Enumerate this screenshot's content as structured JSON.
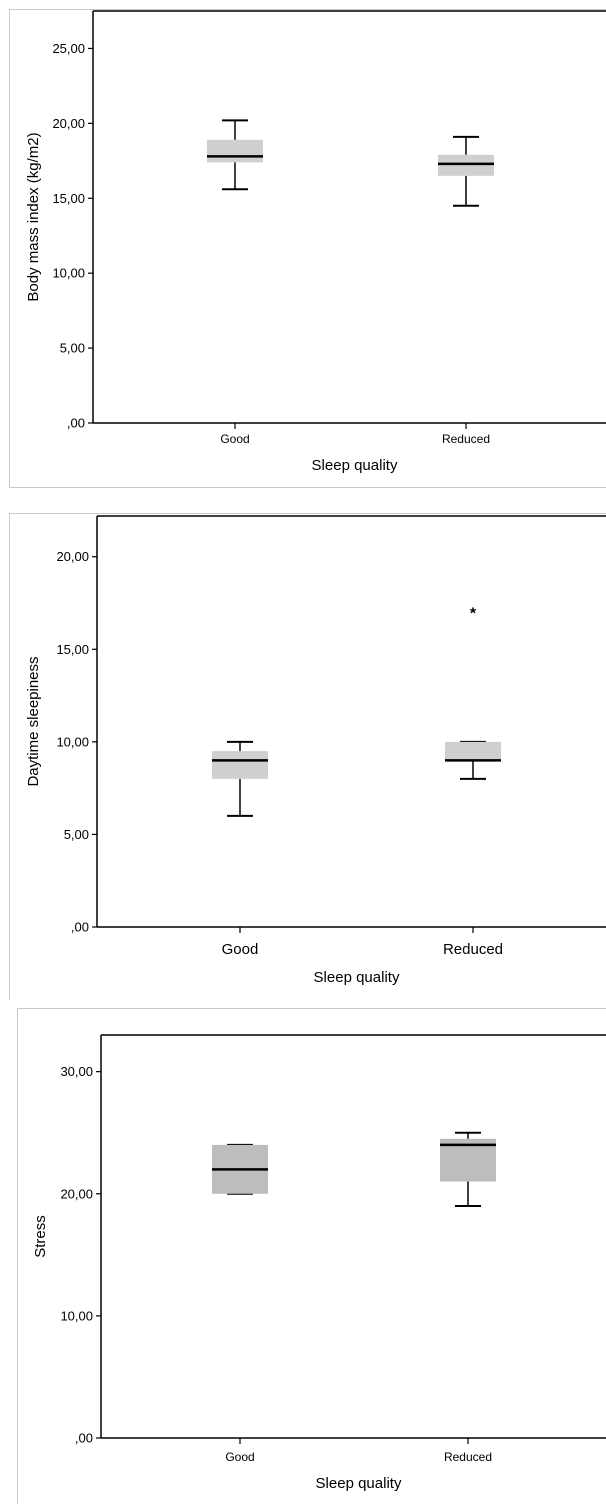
{
  "colors": {
    "box_fill": "#cfcfcf",
    "box_fill_dark": "#bdbdbd",
    "line": "#000000",
    "frame": "#c8c8c8"
  },
  "chart_data": [
    {
      "type": "boxplot",
      "title": "",
      "xlabel": "Sleep quality",
      "ylabel": "Body mass index (kg/m2)",
      "ylim": [
        0,
        27.5
      ],
      "yticks": [
        0,
        5,
        10,
        15,
        20,
        25
      ],
      "ytick_labels": [
        ",00",
        "5,00",
        "10,00",
        "15,00",
        "20,00",
        "25,00"
      ],
      "categories": [
        "Good",
        "Reduced"
      ],
      "boxes": [
        {
          "category": "Good",
          "min": 15.6,
          "q1": 17.4,
          "median": 17.8,
          "q3": 18.9,
          "max": 20.2
        },
        {
          "category": "Reduced",
          "min": 14.5,
          "q1": 16.5,
          "median": 17.3,
          "q3": 17.9,
          "max": 19.1
        }
      ],
      "outliers": [],
      "grid": false,
      "legend": "none"
    },
    {
      "type": "boxplot",
      "title": "",
      "xlabel": "Sleep quality",
      "ylabel": "Daytime sleepiness",
      "ylim": [
        0,
        22.2
      ],
      "yticks": [
        0,
        5,
        10,
        15,
        20
      ],
      "ytick_labels": [
        ",00",
        "5,00",
        "10,00",
        "15,00",
        "20,00"
      ],
      "categories": [
        "Good",
        "Reduced"
      ],
      "boxes": [
        {
          "category": "Good",
          "min": 6.0,
          "q1": 8.0,
          "median": 9.0,
          "q3": 9.5,
          "max": 10.0
        },
        {
          "category": "Reduced",
          "min": 8.0,
          "q1": 9.0,
          "median": 9.0,
          "q3": 10.0,
          "max": 10.0
        }
      ],
      "outliers": [
        {
          "category": "Reduced",
          "value": 17.0,
          "marker": "*"
        }
      ],
      "grid": false,
      "legend": "none"
    },
    {
      "type": "boxplot",
      "title": "",
      "xlabel": "Sleep quality",
      "ylabel": "Stress",
      "ylim": [
        0,
        33
      ],
      "yticks": [
        0,
        10,
        20,
        30
      ],
      "ytick_labels": [
        ",00",
        "10,00",
        "20,00",
        "30,00"
      ],
      "categories": [
        "Good",
        "Reduced"
      ],
      "boxes": [
        {
          "category": "Good",
          "min": 20.0,
          "q1": 20.0,
          "median": 22.0,
          "q3": 24.0,
          "max": 24.0
        },
        {
          "category": "Reduced",
          "min": 19.0,
          "q1": 21.0,
          "median": 24.0,
          "q3": 24.5,
          "max": 25.0
        }
      ],
      "outliers": [],
      "grid": false,
      "legend": "none"
    }
  ]
}
